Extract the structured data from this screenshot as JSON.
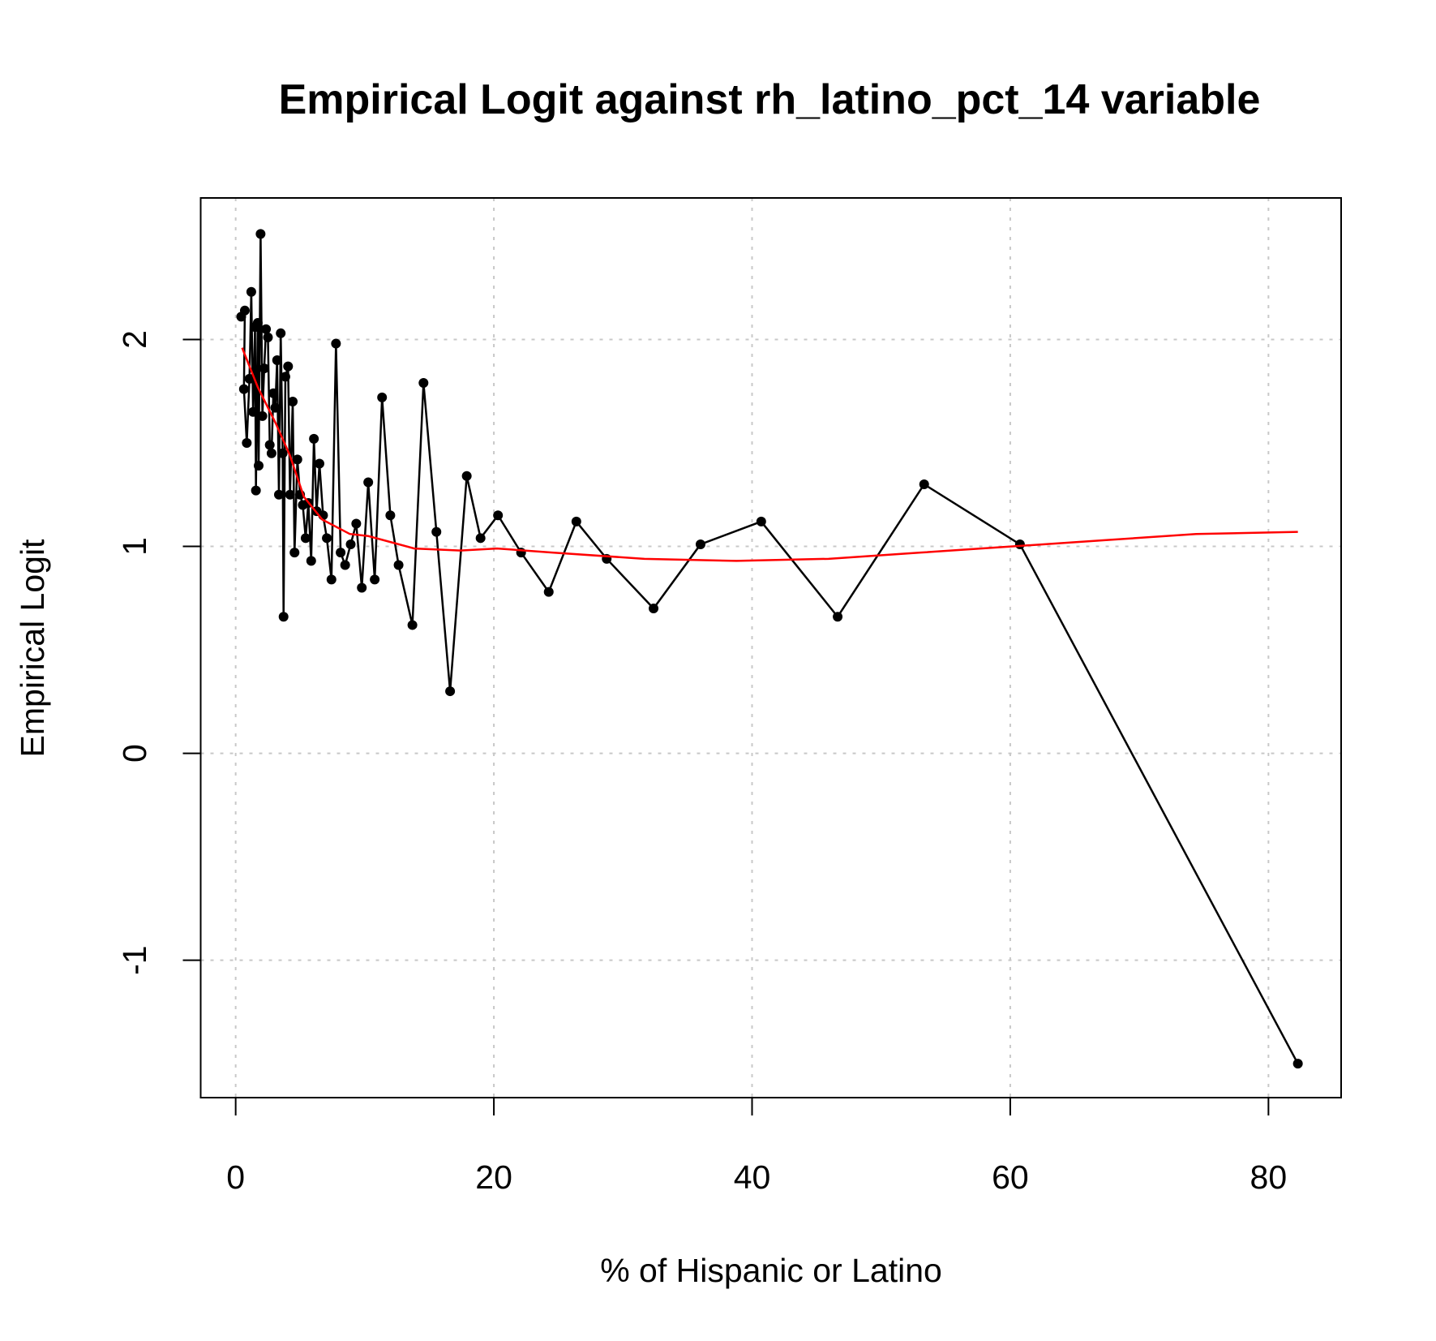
{
  "chart_data": {
    "type": "line",
    "title": "Empirical Logit against rh_latino_pct_14 variable",
    "x_label": "% of Hispanic or Latino",
    "y_label": "Empirical Logit",
    "xlim": [
      -2.71,
      85.63
    ],
    "ylim": [
      -1.664,
      2.684
    ],
    "xticks": [
      0,
      20,
      40,
      60,
      80
    ],
    "yticks": [
      -1,
      0,
      1,
      2
    ],
    "grid": true,
    "series": [
      {
        "color": "#000000",
        "markers": true,
        "x": [
          0.43,
          0.71,
          0.64,
          0.86,
          1.07,
          1.21,
          1.35,
          1.5,
          1.57,
          1.71,
          1.78,
          1.93,
          2.07,
          2.21,
          2.35,
          2.5,
          2.64,
          2.78,
          2.92,
          3.07,
          3.21,
          3.35,
          3.49,
          3.64,
          3.71,
          3.85,
          4.06,
          4.21,
          4.42,
          4.56,
          4.78,
          4.99,
          5.2,
          5.42,
          5.63,
          5.85,
          6.06,
          6.27,
          6.49,
          6.77,
          7.06,
          7.42,
          7.77,
          8.13,
          8.48,
          8.91,
          9.34,
          9.77,
          10.27,
          10.77,
          11.34,
          11.98,
          12.62,
          13.69,
          14.55,
          15.55,
          16.61,
          17.9,
          18.97,
          20.32,
          22.11,
          24.25,
          26.39,
          28.74,
          32.37,
          36.01,
          40.71,
          46.63,
          53.33,
          60.75,
          82.28
        ],
        "values": [
          2.11,
          2.14,
          1.76,
          1.5,
          1.81,
          2.23,
          1.65,
          2.06,
          1.27,
          2.08,
          1.39,
          2.51,
          1.63,
          1.86,
          2.05,
          2.01,
          1.49,
          1.45,
          1.74,
          1.67,
          1.9,
          1.25,
          2.03,
          1.45,
          0.66,
          1.82,
          1.87,
          1.25,
          1.7,
          0.97,
          1.42,
          1.25,
          1.2,
          1.04,
          1.21,
          0.93,
          1.52,
          1.17,
          1.4,
          1.15,
          1.04,
          0.84,
          1.98,
          0.97,
          0.91,
          1.01,
          1.11,
          0.8,
          1.31,
          0.84,
          1.72,
          1.15,
          0.91,
          0.62,
          1.79,
          1.07,
          0.3,
          1.34,
          1.04,
          1.15,
          0.97,
          0.78,
          1.12,
          0.94,
          0.7,
          1.01,
          1.12,
          0.66,
          1.3,
          1.01,
          -1.5
        ]
      },
      {
        "color": "#ff0000",
        "markers": false,
        "x": [
          0.5,
          1.71,
          3.14,
          4.2,
          5.28,
          6.7,
          8.84,
          10.27,
          13.83,
          17.4,
          20.25,
          24.53,
          31.66,
          38.79,
          45.92,
          53.05,
          60.18,
          67.3,
          74.4,
          82.28
        ],
        "values": [
          1.96,
          1.77,
          1.59,
          1.44,
          1.24,
          1.13,
          1.06,
          1.05,
          0.99,
          0.98,
          0.99,
          0.97,
          0.94,
          0.93,
          0.94,
          0.97,
          1.0,
          1.03,
          1.06,
          1.07
        ]
      }
    ]
  }
}
